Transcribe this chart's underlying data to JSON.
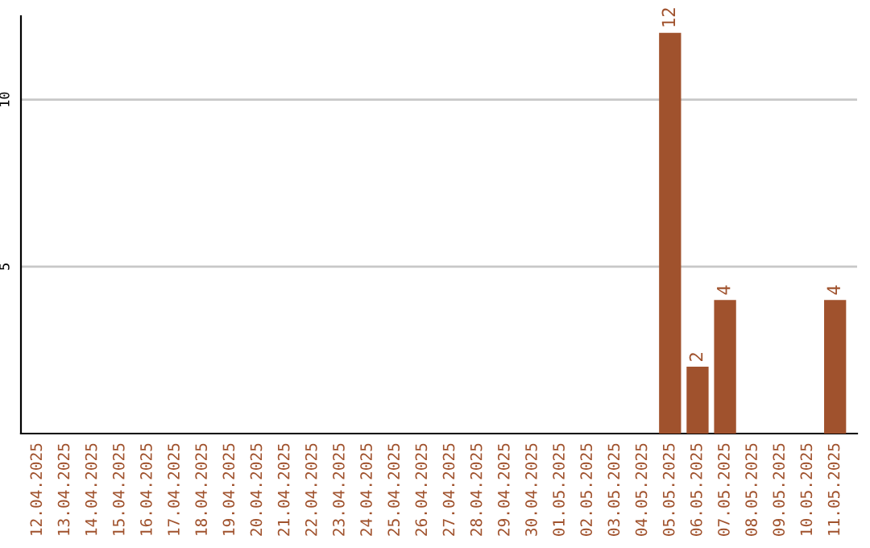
{
  "chart_data": {
    "type": "bar",
    "categories": [
      "12.04.2025",
      "13.04.2025",
      "14.04.2025",
      "15.04.2025",
      "16.04.2025",
      "17.04.2025",
      "18.04.2025",
      "19.04.2025",
      "20.04.2025",
      "21.04.2025",
      "22.04.2025",
      "23.04.2025",
      "24.04.2025",
      "25.04.2025",
      "26.04.2025",
      "27.04.2025",
      "28.04.2025",
      "29.04.2025",
      "30.04.2025",
      "01.05.2025",
      "02.05.2025",
      "03.05.2025",
      "04.05.2025",
      "05.05.2025",
      "06.05.2025",
      "07.05.2025",
      "08.05.2025",
      "09.05.2025",
      "10.05.2025",
      "11.05.2025"
    ],
    "values": [
      0,
      0,
      0,
      0,
      0,
      0,
      0,
      0,
      0,
      0,
      0,
      0,
      0,
      0,
      0,
      0,
      0,
      0,
      0,
      0,
      0,
      0,
      0,
      12,
      2,
      4,
      0,
      0,
      0,
      4
    ],
    "value_labels": [
      null,
      null,
      null,
      null,
      null,
      null,
      null,
      null,
      null,
      null,
      null,
      null,
      null,
      null,
      null,
      null,
      null,
      null,
      null,
      null,
      null,
      null,
      null,
      "12",
      "2",
      "4",
      null,
      null,
      null,
      "4"
    ],
    "color": "#a0522d",
    "ylim": [
      0,
      12.5
    ],
    "yticks": [
      5,
      10
    ],
    "grid": "y",
    "legend": false
  }
}
